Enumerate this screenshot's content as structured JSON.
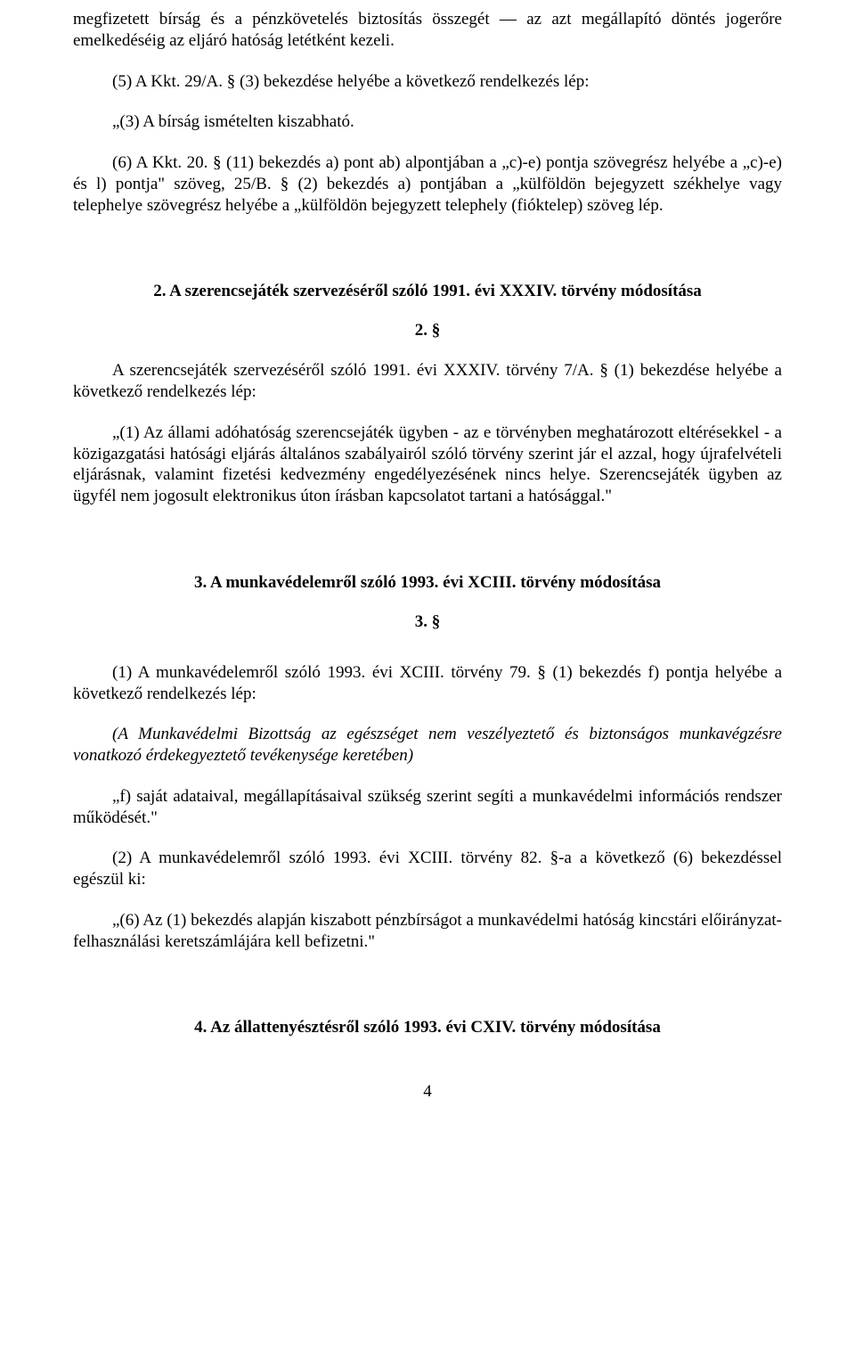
{
  "doc": {
    "p1": "megfizetett bírság és a pénzkövetelés biztosítás összegét — az azt megállapító döntés jogerőre emelkedéséig az eljáró hatóság letétként kezeli.",
    "p2": "(5) A Kkt. 29/A. § (3) bekezdése helyébe a következő rendelkezés lép:",
    "p3": "„(3) A bírság ismételten kiszabható.",
    "p4": "(6) A Kkt. 20. § (11) bekezdés a) pont ab) alpontjában a „c)-e) pontja szövegrész helyébe a „c)-e) és l) pontja\" szöveg, 25/B. § (2) bekezdés a) pontjában a „külföldön bejegyzett székhelye vagy telephelye szövegrész helyébe a „külföldön bejegyzett telephely (fióktelep) szöveg lép.",
    "h2": "2. A szerencsejáték szervezéséről szóló 1991. évi XXXIV. törvény módosítása",
    "s2": "2. §",
    "p5": "A szerencsejáték szervezéséről szóló 1991. évi XXXIV. törvény 7/A. § (1) bekezdése helyébe a következő rendelkezés lép:",
    "p6": "„(1) Az állami adóhatóság szerencsejáték ügyben - az e törvényben meghatározott eltérésekkel - a közigazgatási hatósági eljárás általános szabályairól szóló törvény szerint jár el azzal, hogy újrafelvételi eljárásnak, valamint fizetési kedvezmény engedélyezésének nincs helye. Szerencsejáték ügyben az ügyfél nem jogosult elektronikus úton írásban kapcsolatot tartani a hatósággal.\"",
    "h3": "3. A munkavédelemről szóló 1993. évi XCIII. törvény módosítása",
    "s3": "3. §",
    "p7": "(1) A munkavédelemről szóló 1993. évi XCIII. törvény 79. § (1) bekezdés f) pontja helyébe a következő rendelkezés lép:",
    "p8": "(A Munkavédelmi Bizottság az egészséget nem veszélyeztető és biztonságos munkavégzésre vonatkozó érdekegyeztető tevékenysége keretében)",
    "p9": "„f) saját adataival, megállapításaival szükség szerint segíti a munkavédelmi információs rendszer működését.\"",
    "p10": "(2) A munkavédelemről szóló 1993. évi XCIII. törvény 82. §-a a következő (6) bekezdéssel egészül ki:",
    "p11": "„(6) Az (1) bekezdés alapján kiszabott pénzbírságot a munkavédelmi hatóság kincstári előirányzat-felhasználási keretszámlájára kell befizetni.\"",
    "h4": "4. Az állattenyésztésről szóló 1993. évi CXIV. törvény módosítása",
    "page": "4"
  }
}
